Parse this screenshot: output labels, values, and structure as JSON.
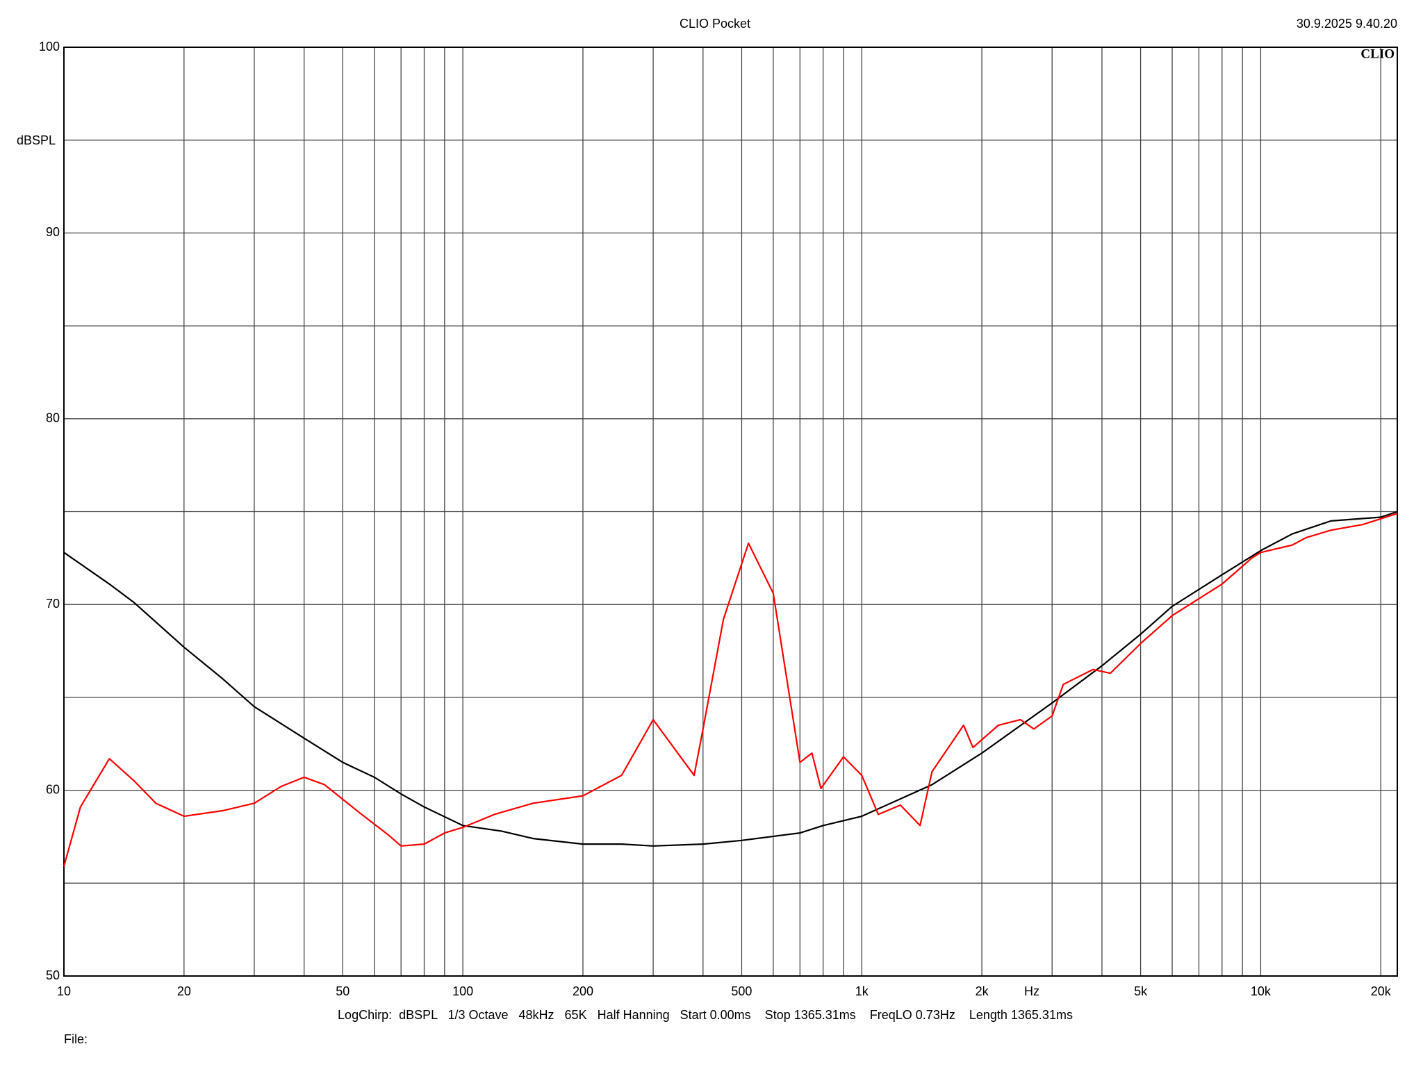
{
  "chart_data": {
    "type": "line",
    "title": "CLIO Pocket",
    "timestamp": "30.9.2025 9.40.20",
    "logo": "CLIO",
    "y_label": "dBSPL",
    "x_label": "Hz",
    "footer": "LogChirp:  dBSPL   1/3 Octave   48kHz   65K   Half Hanning   Start 0.00ms    Stop 1365.31ms    FreqLO 0.73Hz    Length 1365.31ms",
    "file_label": "File:",
    "xscale": "log",
    "grid": true,
    "xlim": [
      10,
      22000
    ],
    "ylim": [
      50,
      100
    ],
    "yticks": [
      50,
      60,
      70,
      80,
      90,
      100
    ],
    "yminor": [
      55,
      65,
      75,
      85,
      95
    ],
    "xticks": [
      10,
      20,
      50,
      100,
      200,
      500,
      {
        "value": 1000,
        "label": "1k"
      },
      {
        "value": 2000,
        "label": "2k"
      },
      {
        "value": 5000,
        "label": "5k"
      },
      {
        "value": 10000,
        "label": "10k"
      },
      {
        "value": 20000,
        "label": "20k"
      }
    ],
    "xminor": [
      30,
      40,
      60,
      70,
      80,
      90,
      300,
      400,
      600,
      700,
      800,
      900,
      3000,
      4000,
      6000,
      7000,
      8000,
      9000
    ],
    "series": [
      {
        "name": "Black",
        "color": "#000000",
        "x": [
          10,
          13,
          15,
          20,
          25,
          30,
          40,
          50,
          60,
          70,
          80,
          100,
          125,
          150,
          200,
          250,
          300,
          400,
          500,
          700,
          800,
          1000,
          1500,
          2000,
          3000,
          4000,
          5000,
          6000,
          8000,
          10000,
          12000,
          15000,
          20000,
          22000
        ],
        "values": [
          72.8,
          71.1,
          70.1,
          67.7,
          66.0,
          64.5,
          62.8,
          61.5,
          60.7,
          59.8,
          59.1,
          58.1,
          57.8,
          57.4,
          57.1,
          57.1,
          57.0,
          57.1,
          57.3,
          57.7,
          58.1,
          58.6,
          60.3,
          62.0,
          64.7,
          66.7,
          68.4,
          69.9,
          71.6,
          72.9,
          73.8,
          74.5,
          74.7,
          75.0
        ]
      },
      {
        "name": "Red",
        "color": "#ff0000",
        "x": [
          10,
          11,
          13,
          15,
          17,
          20,
          25,
          30,
          35,
          40,
          45,
          55,
          65,
          70,
          80,
          90,
          100,
          120,
          150,
          200,
          250,
          300,
          380,
          400,
          450,
          520,
          600,
          700,
          750,
          790,
          900,
          1000,
          1100,
          1250,
          1400,
          1500,
          1800,
          1900,
          2200,
          2500,
          2700,
          3000,
          3200,
          3800,
          4200,
          5000,
          6000,
          8000,
          9500,
          10000,
          12000,
          13000,
          15000,
          18000,
          22000
        ],
        "values": [
          55.9,
          59.1,
          61.7,
          60.5,
          59.3,
          58.6,
          58.9,
          59.3,
          60.2,
          60.7,
          60.3,
          58.8,
          57.6,
          57.0,
          57.1,
          57.7,
          58.0,
          58.7,
          59.3,
          59.7,
          60.8,
          63.8,
          60.8,
          63.3,
          69.2,
          73.3,
          70.6,
          61.5,
          62.0,
          60.1,
          61.8,
          60.8,
          58.7,
          59.2,
          58.1,
          61.0,
          63.5,
          62.3,
          63.5,
          63.8,
          63.3,
          64.0,
          65.7,
          66.5,
          66.3,
          67.9,
          69.4,
          71.1,
          72.5,
          72.8,
          73.2,
          73.6,
          74.0,
          74.3,
          74.9
        ]
      }
    ]
  }
}
